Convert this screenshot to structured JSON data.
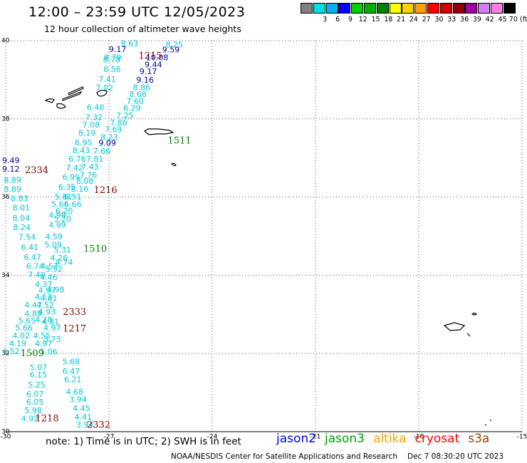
{
  "header": {
    "title": "12:00 – 23:59 UTC 12/05/2023",
    "subtitle": "12 hour collection of altimeter wave heights"
  },
  "colorbar": {
    "colors": [
      "#808080",
      "#00e0e0",
      "#00b0f0",
      "#0000ff",
      "#00d000",
      "#00b000",
      "#008000",
      "#ffff00",
      "#ffd000",
      "#ffa000",
      "#ff0000",
      "#d00000",
      "#900000",
      "#a000a0",
      "#d080f0",
      "#ff80e0",
      "#000000"
    ],
    "labels": [
      "3",
      "6",
      "9",
      "12",
      "15",
      "18",
      "21",
      "24",
      "27",
      "30",
      "33",
      "36",
      "39",
      "42",
      "45",
      "70 (ft)"
    ]
  },
  "chart_data": {
    "type": "scatter",
    "xlim": [
      -30,
      -15
    ],
    "ylim": [
      30,
      40
    ],
    "x_ticks": [
      -30,
      -27,
      -24,
      -21,
      -18,
      -15
    ],
    "y_ticks": [
      30,
      32,
      34,
      36,
      38,
      40
    ],
    "grid": true,
    "series_colors": {
      "jason2": "#0000ff",
      "jason3": "#00a000",
      "altika": "#ffa000",
      "cryosat": "#ff0000",
      "s3a": "#a04000"
    },
    "level_colors": {
      "cyan": "#00c8d8",
      "blue": "#0000a0",
      "time_dark": "#800000",
      "time_green": "#008000"
    },
    "points": [
      {
        "lon": -26.4,
        "lat": 39.91,
        "v": "8.63",
        "c": "cyan"
      },
      {
        "lon": -26.75,
        "lat": 39.76,
        "v": "9.17",
        "c": "blue"
      },
      {
        "lon": -25.1,
        "lat": 39.88,
        "v": "8.25",
        "c": "cyan"
      },
      {
        "lon": -25.2,
        "lat": 39.75,
        "v": "9.59",
        "c": "blue"
      },
      {
        "lon": -26.89,
        "lat": 39.55,
        "v": "8.79",
        "c": "cyan"
      },
      {
        "lon": -26.92,
        "lat": 39.5,
        "v": "8.78",
        "c": "cyan"
      },
      {
        "lon": -25.6,
        "lat": 39.55,
        "v": "10.08",
        "c": "blue"
      },
      {
        "lon": -25.71,
        "lat": 39.37,
        "v": "9.44",
        "c": "blue"
      },
      {
        "lon": -26.91,
        "lat": 39.25,
        "v": "8.56",
        "c": "cyan"
      },
      {
        "lon": -25.86,
        "lat": 39.2,
        "v": "9.17",
        "c": "blue"
      },
      {
        "lon": -27.05,
        "lat": 39.0,
        "v": "7.41",
        "c": "cyan"
      },
      {
        "lon": -25.95,
        "lat": 38.98,
        "v": "9.16",
        "c": "blue"
      },
      {
        "lon": -27.13,
        "lat": 38.78,
        "v": "7.02",
        "c": "cyan"
      },
      {
        "lon": -26.05,
        "lat": 38.79,
        "v": "8.86",
        "c": "cyan"
      },
      {
        "lon": -26.16,
        "lat": 38.62,
        "v": "8.68",
        "c": "cyan"
      },
      {
        "lon": -26.24,
        "lat": 38.43,
        "v": "7.60",
        "c": "cyan"
      },
      {
        "lon": -27.39,
        "lat": 38.28,
        "v": "6.40",
        "c": "cyan"
      },
      {
        "lon": -26.33,
        "lat": 38.26,
        "v": "6.29",
        "c": "cyan"
      },
      {
        "lon": -27.44,
        "lat": 38.02,
        "v": "7.32",
        "c": "cyan"
      },
      {
        "lon": -26.54,
        "lat": 38.07,
        "v": "7.25",
        "c": "cyan"
      },
      {
        "lon": -26.72,
        "lat": 37.89,
        "v": "7.86",
        "c": "cyan"
      },
      {
        "lon": -27.52,
        "lat": 37.83,
        "v": "7.08",
        "c": "cyan"
      },
      {
        "lon": -26.87,
        "lat": 37.71,
        "v": "7.69",
        "c": "cyan"
      },
      {
        "lon": -27.64,
        "lat": 37.62,
        "v": "8.19",
        "c": "cyan"
      },
      {
        "lon": -26.99,
        "lat": 37.51,
        "v": "8.23",
        "c": "cyan"
      },
      {
        "lon": -27.74,
        "lat": 37.38,
        "v": "6.95",
        "c": "cyan"
      },
      {
        "lon": -27.05,
        "lat": 37.37,
        "v": "9.09",
        "c": "blue"
      },
      {
        "lon": -27.81,
        "lat": 37.18,
        "v": "8.43",
        "c": "cyan"
      },
      {
        "lon": -27.21,
        "lat": 37.16,
        "v": "7.66",
        "c": "cyan"
      },
      {
        "lon": -27.92,
        "lat": 36.96,
        "v": "6.76",
        "c": "cyan"
      },
      {
        "lon": -27.41,
        "lat": 36.96,
        "v": "7.81",
        "c": "cyan"
      },
      {
        "lon": -29.85,
        "lat": 36.92,
        "v": "9.49",
        "c": "blue"
      },
      {
        "lon": -28.0,
        "lat": 36.73,
        "v": "7.42",
        "c": "cyan"
      },
      {
        "lon": -27.55,
        "lat": 36.76,
        "v": "7.43",
        "c": "cyan"
      },
      {
        "lon": -29.85,
        "lat": 36.7,
        "v": "9.12",
        "c": "blue"
      },
      {
        "lon": -27.6,
        "lat": 36.55,
        "v": "7.76",
        "c": "cyan"
      },
      {
        "lon": -28.1,
        "lat": 36.49,
        "v": "6.99",
        "c": "cyan"
      },
      {
        "lon": -27.7,
        "lat": 36.39,
        "v": "8.08",
        "c": "cyan"
      },
      {
        "lon": -29.8,
        "lat": 36.42,
        "v": "8.89",
        "c": "cyan"
      },
      {
        "lon": -28.22,
        "lat": 36.24,
        "v": "6.35",
        "c": "cyan"
      },
      {
        "lon": -27.85,
        "lat": 36.19,
        "v": "8.16",
        "c": "cyan"
      },
      {
        "lon": -29.8,
        "lat": 36.18,
        "v": "8.89",
        "c": "cyan"
      },
      {
        "lon": -28.32,
        "lat": 35.99,
        "v": "5.81",
        "c": "cyan"
      },
      {
        "lon": -28.05,
        "lat": 35.99,
        "v": "6.51",
        "c": "cyan"
      },
      {
        "lon": -29.6,
        "lat": 35.95,
        "v": "8.83",
        "c": "cyan"
      },
      {
        "lon": -28.42,
        "lat": 35.8,
        "v": "5.66",
        "c": "cyan"
      },
      {
        "lon": -28.05,
        "lat": 35.8,
        "v": "6.66",
        "c": "cyan"
      },
      {
        "lon": -29.55,
        "lat": 35.71,
        "v": "8.01",
        "c": "cyan"
      },
      {
        "lon": -28.3,
        "lat": 35.63,
        "v": "6.20",
        "c": "cyan"
      },
      {
        "lon": -28.5,
        "lat": 35.52,
        "v": "4.99",
        "c": "cyan"
      },
      {
        "lon": -29.55,
        "lat": 35.45,
        "v": "8.04",
        "c": "cyan"
      },
      {
        "lon": -28.35,
        "lat": 35.43,
        "v": "5.20",
        "c": "cyan"
      },
      {
        "lon": -28.5,
        "lat": 35.27,
        "v": "4.99",
        "c": "cyan"
      },
      {
        "lon": -29.53,
        "lat": 35.21,
        "v": "8.24",
        "c": "cyan"
      },
      {
        "lon": -28.6,
        "lat": 34.97,
        "v": "4.59",
        "c": "cyan"
      },
      {
        "lon": -29.38,
        "lat": 34.96,
        "v": "7.54",
        "c": "cyan"
      },
      {
        "lon": -28.62,
        "lat": 34.76,
        "v": "5.09",
        "c": "cyan"
      },
      {
        "lon": -29.3,
        "lat": 34.7,
        "v": "6.41",
        "c": "cyan"
      },
      {
        "lon": -28.35,
        "lat": 34.64,
        "v": "5.31",
        "c": "cyan"
      },
      {
        "lon": -29.22,
        "lat": 34.44,
        "v": "6.47",
        "c": "cyan"
      },
      {
        "lon": -28.45,
        "lat": 34.43,
        "v": "4.26",
        "c": "cyan"
      },
      {
        "lon": -28.3,
        "lat": 34.32,
        "v": "4.74",
        "c": "cyan"
      },
      {
        "lon": -29.15,
        "lat": 34.22,
        "v": "6.74",
        "c": "cyan"
      },
      {
        "lon": -28.73,
        "lat": 34.22,
        "v": "4.53",
        "c": "cyan"
      },
      {
        "lon": -28.6,
        "lat": 34.14,
        "v": "5.52",
        "c": "cyan"
      },
      {
        "lon": -29.1,
        "lat": 34.0,
        "v": "7.40",
        "c": "cyan"
      },
      {
        "lon": -28.75,
        "lat": 33.93,
        "v": "4.46",
        "c": "cyan"
      },
      {
        "lon": -28.9,
        "lat": 33.75,
        "v": "4.37",
        "c": "cyan"
      },
      {
        "lon": -28.8,
        "lat": 33.6,
        "v": "4.97",
        "c": "cyan"
      },
      {
        "lon": -28.55,
        "lat": 33.62,
        "v": "4.98",
        "c": "cyan"
      },
      {
        "lon": -28.9,
        "lat": 33.43,
        "v": "4.12",
        "c": "cyan"
      },
      {
        "lon": -28.75,
        "lat": 33.4,
        "v": "4.81",
        "c": "cyan"
      },
      {
        "lon": -29.2,
        "lat": 33.22,
        "v": "4.47",
        "c": "cyan"
      },
      {
        "lon": -28.85,
        "lat": 33.22,
        "v": "4.52",
        "c": "cyan"
      },
      {
        "lon": -28.8,
        "lat": 33.05,
        "v": "4.93",
        "c": "cyan"
      },
      {
        "lon": -29.2,
        "lat": 33.01,
        "v": "4.88",
        "c": "cyan"
      },
      {
        "lon": -28.9,
        "lat": 32.85,
        "v": "4.28",
        "c": "cyan"
      },
      {
        "lon": -28.7,
        "lat": 32.8,
        "v": "4.81",
        "c": "cyan"
      },
      {
        "lon": -29.38,
        "lat": 32.82,
        "v": "5.65",
        "c": "cyan"
      },
      {
        "lon": -29.47,
        "lat": 32.64,
        "v": "5.66",
        "c": "cyan"
      },
      {
        "lon": -28.65,
        "lat": 32.64,
        "v": "4.97",
        "c": "cyan"
      },
      {
        "lon": -29.55,
        "lat": 32.44,
        "v": "4.02",
        "c": "cyan"
      },
      {
        "lon": -28.95,
        "lat": 32.44,
        "v": "4.55",
        "c": "cyan"
      },
      {
        "lon": -28.65,
        "lat": 32.35,
        "v": "3.73",
        "c": "cyan"
      },
      {
        "lon": -29.65,
        "lat": 32.24,
        "v": "4.19",
        "c": "cyan"
      },
      {
        "lon": -28.9,
        "lat": 32.24,
        "v": "4.97",
        "c": "cyan"
      },
      {
        "lon": -29.85,
        "lat": 32.04,
        "v": "4.52",
        "c": "cyan"
      },
      {
        "lon": -28.75,
        "lat": 32.03,
        "v": "5.06",
        "c": "cyan"
      },
      {
        "lon": -28.1,
        "lat": 31.78,
        "v": "5.68",
        "c": "cyan"
      },
      {
        "lon": -29.05,
        "lat": 31.63,
        "v": "5.07",
        "c": "cyan"
      },
      {
        "lon": -28.1,
        "lat": 31.53,
        "v": "6.47",
        "c": "cyan"
      },
      {
        "lon": -29.05,
        "lat": 31.44,
        "v": "6.15",
        "c": "cyan"
      },
      {
        "lon": -28.05,
        "lat": 31.32,
        "v": "6.21",
        "c": "cyan"
      },
      {
        "lon": -29.1,
        "lat": 31.18,
        "v": "5.25",
        "c": "cyan"
      },
      {
        "lon": -28.0,
        "lat": 31.0,
        "v": "4.68",
        "c": "cyan"
      },
      {
        "lon": -29.15,
        "lat": 30.95,
        "v": "6.07",
        "c": "cyan"
      },
      {
        "lon": -27.9,
        "lat": 30.81,
        "v": "3.94",
        "c": "cyan"
      },
      {
        "lon": -29.15,
        "lat": 30.75,
        "v": "6.05",
        "c": "cyan"
      },
      {
        "lon": -27.8,
        "lat": 30.58,
        "v": "4.45",
        "c": "cyan"
      },
      {
        "lon": -29.2,
        "lat": 30.53,
        "v": "5.98",
        "c": "cyan"
      },
      {
        "lon": -27.75,
        "lat": 30.36,
        "v": "4.41",
        "c": "cyan"
      },
      {
        "lon": -29.3,
        "lat": 30.32,
        "v": "4.92",
        "c": "cyan"
      },
      {
        "lon": -27.7,
        "lat": 30.16,
        "v": "3.94",
        "c": "cyan"
      }
    ],
    "time_labels": [
      {
        "lon": -25.8,
        "lat": 39.6,
        "t": "1215",
        "c": "time_dark"
      },
      {
        "lon": -29.1,
        "lat": 36.68,
        "t": "2334",
        "c": "time_dark"
      },
      {
        "lon": -27.1,
        "lat": 36.17,
        "t": "1216",
        "c": "time_dark"
      },
      {
        "lon": -24.95,
        "lat": 37.43,
        "t": "1511",
        "c": "time_green"
      },
      {
        "lon": -27.4,
        "lat": 34.66,
        "t": "1510",
        "c": "time_green"
      },
      {
        "lon": -28.0,
        "lat": 33.05,
        "t": "2333",
        "c": "time_dark"
      },
      {
        "lon": -28.0,
        "lat": 32.62,
        "t": "1217",
        "c": "time_dark"
      },
      {
        "lon": -29.23,
        "lat": 31.99,
        "t": "1509",
        "c": "time_green"
      },
      {
        "lon": -28.8,
        "lat": 30.33,
        "t": "1218",
        "c": "time_dark"
      },
      {
        "lon": -27.3,
        "lat": 30.16,
        "t": "2332",
        "c": "time_dark"
      }
    ]
  },
  "footer": {
    "note": "note:  1) Time is in UTC; 2) SWH is in feet",
    "satellites": [
      {
        "name": "jason2",
        "color": "#0000ff"
      },
      {
        "name": "jason3",
        "color": "#00a000"
      },
      {
        "name": "altika",
        "color": "#ffa000"
      },
      {
        "name": "cryosat",
        "color": "#ff0000"
      },
      {
        "name": "s3a",
        "color": "#a04000"
      }
    ],
    "credit": "NOAA/NESDIS Center for Satellite Applications and Research",
    "timestamp": "Dec  7 08:30:20 UTC 2023"
  }
}
